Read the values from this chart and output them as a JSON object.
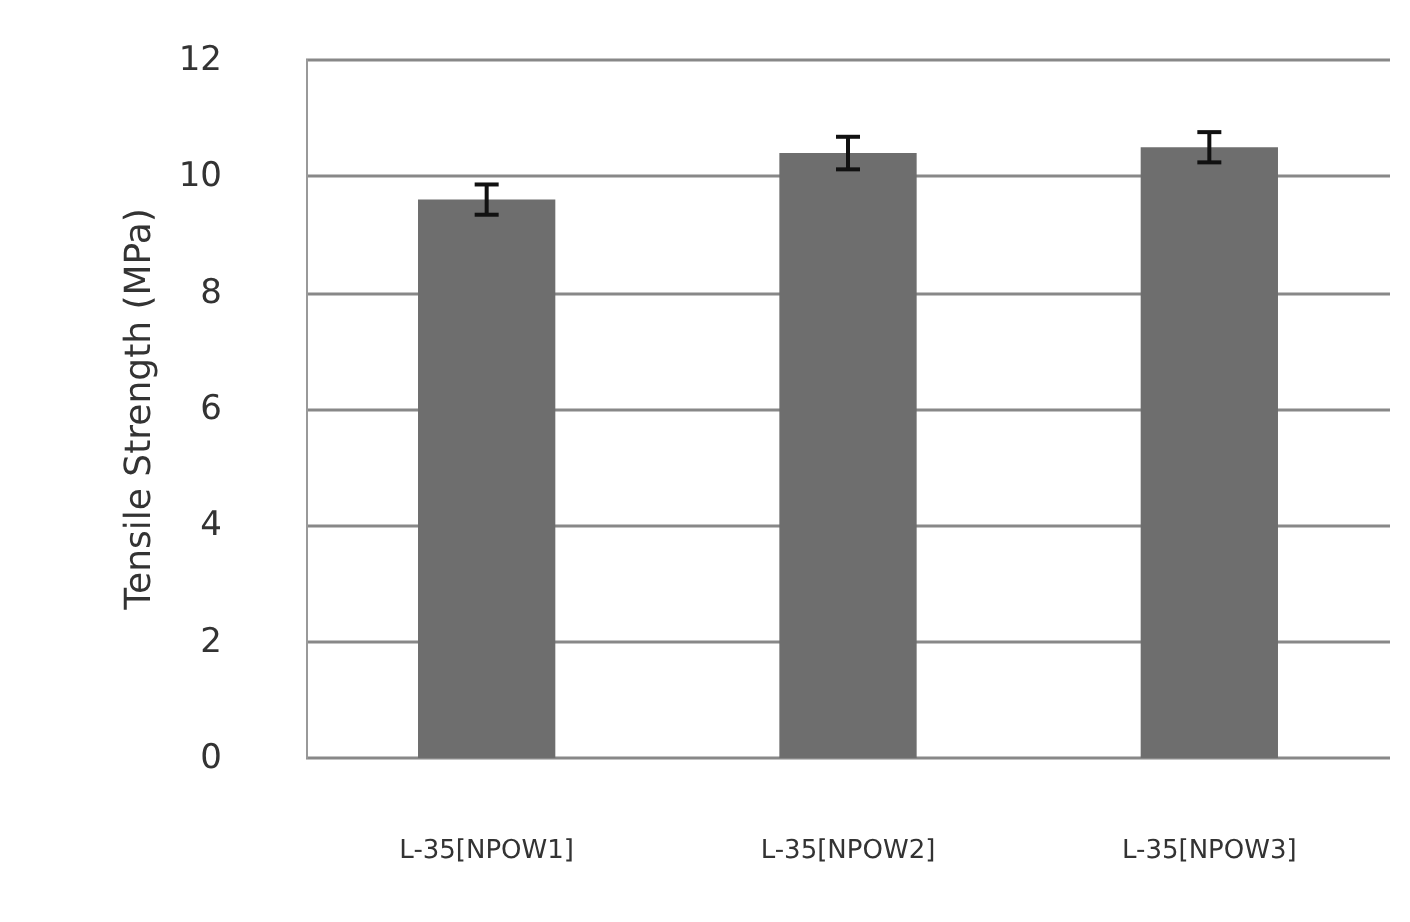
{
  "chart_data": {
    "type": "bar",
    "ylabel": "Tensile Strength (MPa)",
    "categories": [
      "L-35[NPOW1]",
      "L-35[NPOW2]",
      "L-35[NPOW3]"
    ],
    "values": [
      9.6,
      10.4,
      10.5
    ],
    "errors": [
      0.26,
      0.28,
      0.26
    ],
    "color": "#6e6e6e",
    "ylim": [
      0,
      12
    ],
    "yticks": [
      0,
      2,
      4,
      6,
      8,
      10,
      12
    ],
    "grid": "y"
  }
}
